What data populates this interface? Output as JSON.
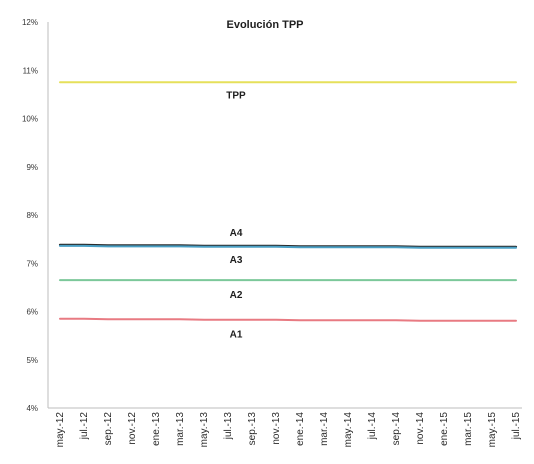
{
  "chart_data": {
    "type": "line",
    "title": "Evolución TPP",
    "xlabel": "",
    "ylabel": "",
    "ylim": [
      0.04,
      0.12
    ],
    "y_ticks": [
      "12%",
      "11%",
      "10%",
      "9%",
      "8%",
      "7%",
      "6%",
      "5%",
      "4%"
    ],
    "x": [
      "may.-12",
      "jul.-12",
      "sep.-12",
      "nov.-12",
      "ene.-13",
      "mar.-13",
      "may.-13",
      "jul.-13",
      "sep.-13",
      "nov.-13",
      "ene.-14",
      "mar.-14",
      "may.-14",
      "jul.-14",
      "sep.-14",
      "nov.-14",
      "ene.-15",
      "mar.-15",
      "may.-15",
      "jul.-15"
    ],
    "grid": false,
    "legend": "none",
    "series": [
      {
        "name": "TPP",
        "color": "#e6e05a",
        "values": [
          0.1075,
          0.1075,
          0.1075,
          0.1075,
          0.1075,
          0.1075,
          0.1075,
          0.1075,
          0.1075,
          0.1075,
          0.1075,
          0.1075,
          0.1075,
          0.1075,
          0.1075,
          0.1075,
          0.1075,
          0.1075,
          0.1075,
          0.1075
        ]
      },
      {
        "name": "A4",
        "color": "#2b2b2b",
        "values": [
          0.0738,
          0.0738,
          0.0737,
          0.0737,
          0.0737,
          0.0737,
          0.0736,
          0.0736,
          0.0736,
          0.0736,
          0.0735,
          0.0735,
          0.0735,
          0.0735,
          0.0735,
          0.0734,
          0.0734,
          0.0734,
          0.0734,
          0.0734
        ]
      },
      {
        "name": "A3",
        "color": "#4a9fc4",
        "values": [
          0.0736,
          0.0736,
          0.0735,
          0.0735,
          0.0735,
          0.0735,
          0.0734,
          0.0734,
          0.0734,
          0.0734,
          0.0733,
          0.0733,
          0.0733,
          0.0733,
          0.0733,
          0.0732,
          0.0732,
          0.0732,
          0.0732,
          0.0732
        ]
      },
      {
        "name": "A2",
        "color": "#7cc89a",
        "values": [
          0.0665,
          0.0665,
          0.0665,
          0.0665,
          0.0665,
          0.0665,
          0.0665,
          0.0665,
          0.0665,
          0.0665,
          0.0665,
          0.0665,
          0.0665,
          0.0665,
          0.0665,
          0.0665,
          0.0665,
          0.0665,
          0.0665,
          0.0665
        ]
      },
      {
        "name": "A1",
        "color": "#e87a82",
        "values": [
          0.0585,
          0.0585,
          0.0584,
          0.0584,
          0.0584,
          0.0584,
          0.0583,
          0.0583,
          0.0583,
          0.0583,
          0.0582,
          0.0582,
          0.0582,
          0.0582,
          0.0582,
          0.0581,
          0.0581,
          0.0581,
          0.0581,
          0.0581
        ]
      }
    ]
  }
}
